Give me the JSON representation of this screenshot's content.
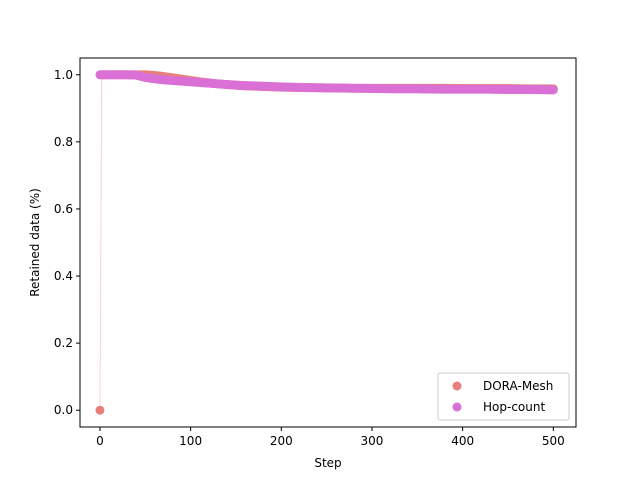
{
  "chart_data": {
    "type": "scatter",
    "title": "",
    "xlabel": "Step",
    "ylabel": "Retained data (%)",
    "xlim": [
      -22,
      525
    ],
    "ylim": [
      -0.05,
      1.05
    ],
    "xticks": [
      0,
      100,
      200,
      300,
      400,
      500
    ],
    "xtick_labels": [
      "0",
      "100",
      "200",
      "300",
      "400",
      "500"
    ],
    "yticks": [
      0.0,
      0.2,
      0.4,
      0.6,
      0.8,
      1.0
    ],
    "ytick_labels": [
      "0.0",
      "0.2",
      "0.4",
      "0.6",
      "0.8",
      "1.0"
    ],
    "grid": false,
    "legend_position": "lower right",
    "series": [
      {
        "name": "DORA-Mesh",
        "color": "#e8807a",
        "x": [
          0,
          2,
          10,
          20,
          30,
          40,
          50,
          60,
          70,
          80,
          90,
          100,
          110,
          120,
          130,
          140,
          150,
          160,
          170,
          180,
          190,
          200,
          225,
          250,
          275,
          300,
          325,
          350,
          375,
          400,
          425,
          450,
          475,
          500
        ],
        "y": [
          0.0,
          1.0,
          1.0,
          1.0,
          1.0,
          1.0,
          1.0,
          0.998,
          0.995,
          0.991,
          0.987,
          0.983,
          0.979,
          0.976,
          0.973,
          0.971,
          0.969,
          0.967,
          0.966,
          0.965,
          0.964,
          0.963,
          0.962,
          0.961,
          0.96,
          0.96,
          0.96,
          0.96,
          0.96,
          0.959,
          0.959,
          0.959,
          0.958,
          0.958
        ]
      },
      {
        "name": "Hop-count",
        "color": "#da70d6",
        "x": [
          0,
          10,
          20,
          30,
          40,
          50,
          60,
          70,
          80,
          90,
          100,
          110,
          120,
          130,
          140,
          150,
          160,
          170,
          180,
          190,
          200,
          225,
          250,
          275,
          300,
          325,
          350,
          375,
          400,
          425,
          450,
          475,
          500
        ],
        "y": [
          1.0,
          1.0,
          1.0,
          1.0,
          0.999,
          0.992,
          0.988,
          0.985,
          0.983,
          0.981,
          0.979,
          0.977,
          0.975,
          0.973,
          0.971,
          0.969,
          0.968,
          0.967,
          0.966,
          0.965,
          0.964,
          0.962,
          0.961,
          0.96,
          0.959,
          0.958,
          0.958,
          0.957,
          0.957,
          0.957,
          0.956,
          0.956,
          0.955
        ]
      }
    ]
  }
}
